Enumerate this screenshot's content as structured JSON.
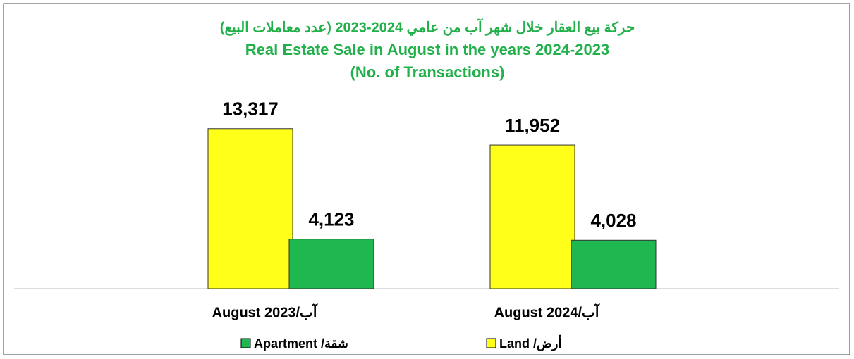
{
  "chart_data": {
    "type": "bar",
    "title": [
      "حركة بيع العقار خلال شهر آب من عامي 2024-2023 (عدد معاملات البيع)",
      "Real Estate Sale in August in the years 2024-2023",
      "(No. of Transactions)"
    ],
    "categories": [
      "August 2023/آب",
      "August 2024/آب"
    ],
    "series": [
      {
        "name": "Land /أرض",
        "color": "#ffff1a",
        "values": [
          13317,
          11952
        ],
        "value_labels": [
          "13,317",
          "11,952"
        ]
      },
      {
        "name": "Apartment /شقة",
        "color": "#1fb850",
        "values": [
          4123,
          4028
        ],
        "value_labels": [
          "4,123",
          "4,028"
        ]
      }
    ],
    "ylim": [
      0,
      16000
    ]
  }
}
